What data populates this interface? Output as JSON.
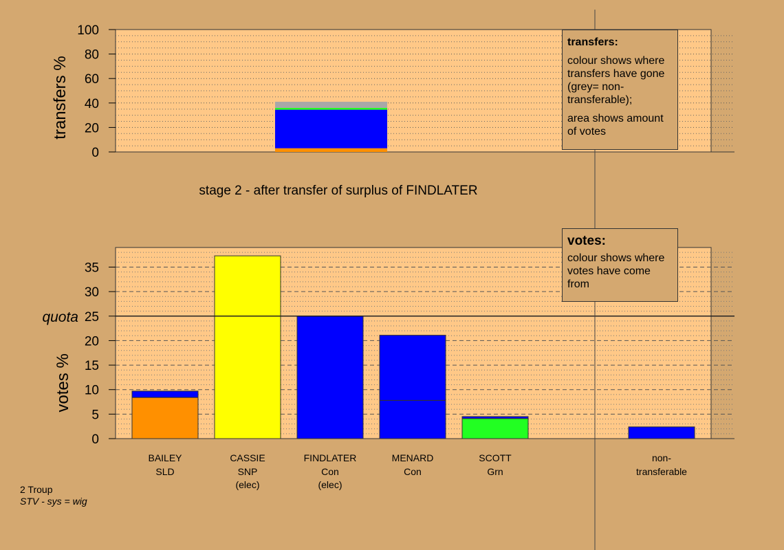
{
  "chart_data": [
    {
      "type": "bar",
      "subtype": "stacked",
      "name": "transfers",
      "ylabel": "transfers %",
      "ylim": [
        0,
        100
      ],
      "yticks": [
        0,
        20,
        40,
        60,
        80,
        100
      ],
      "columns": [
        "BAILEY",
        "CASSIE",
        "FINDLATER",
        "MENARD",
        "SCOTT",
        "non-transferable"
      ],
      "bar": {
        "column": "FINDLATER",
        "segments": [
          {
            "to": "BAILEY",
            "color": "#FF9000",
            "value": 3
          },
          {
            "to": "MENARD",
            "color": "#0000FF",
            "value": 31.5
          },
          {
            "to": "SCOTT",
            "color": "#22FF22",
            "value": 1.5
          },
          {
            "to": "non-transferable",
            "color": "#A8A8A8",
            "value": 5
          }
        ]
      }
    },
    {
      "type": "bar",
      "subtype": "stacked",
      "name": "votes",
      "ylabel": "votes %",
      "ylim": [
        0,
        39
      ],
      "yticks": [
        0,
        5,
        10,
        15,
        20,
        25,
        30,
        35
      ],
      "quota": 25,
      "quota_label": "quota",
      "candidates": [
        {
          "name": "BAILEY",
          "party": "SLD",
          "note": "",
          "segments": [
            {
              "color": "#FF9000",
              "value": 8.4
            },
            {
              "color": "#0000FF",
              "value": 1.3
            }
          ]
        },
        {
          "name": "CASSIE",
          "party": "SNP",
          "note": "(elec)",
          "segments": [
            {
              "color": "#FFFF00",
              "value": 37.3
            }
          ]
        },
        {
          "name": "FINDLATER",
          "party": "Con",
          "note": "(elec)",
          "segments": [
            {
              "color": "#0000FF",
              "value": 25
            }
          ]
        },
        {
          "name": "MENARD",
          "party": "Con",
          "note": "",
          "segments": [
            {
              "color": "#0000FF",
              "value": 7.8
            },
            {
              "color": "#0000FF",
              "value": 13.3
            }
          ]
        },
        {
          "name": "SCOTT",
          "party": "Grn",
          "note": "",
          "segments": [
            {
              "color": "#22FF22",
              "value": 4.1
            },
            {
              "color": "#0000FF",
              "value": 0.4
            }
          ]
        }
      ],
      "nontransferable": {
        "label_line1": "non-",
        "label_line2": "transferable",
        "value": 2.4,
        "color": "#0000FF"
      }
    }
  ],
  "stage_title": "stage 2 - after transfer of surplus of FINDLATER",
  "legend_transfers": {
    "title": "transfers:",
    "text1": "colour shows where transfers have gone (grey= non-transferable);",
    "text2": "area shows amount of votes"
  },
  "legend_votes": {
    "title": "votes:",
    "text": "colour shows where votes have come from"
  },
  "footer": {
    "line1": "2 Troup",
    "line2": "STV - sys = wig"
  }
}
